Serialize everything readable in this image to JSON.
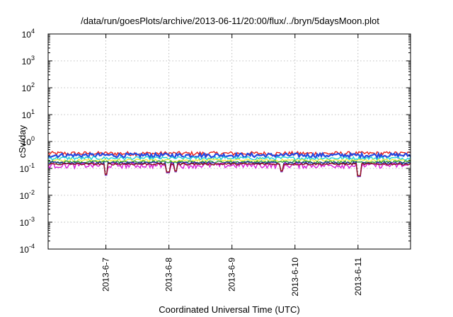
{
  "chart_data": {
    "type": "line",
    "title": "/data/run/goesPlots/archive/2013-06-11/20:00/flux/../bryn/5daysMoon.plot",
    "xlabel": "Coordinated Universal Time (UTC)",
    "ylabel": "cSv/day",
    "yscale": "log",
    "ylim": [
      0.0001,
      10000
    ],
    "xlim": [
      "2013-06-06 02:00",
      "2013-06-11 20:00"
    ],
    "y_ticks": [
      {
        "value": 0.0001,
        "base": "10",
        "exp": "-4"
      },
      {
        "value": 0.001,
        "base": "10",
        "exp": "-3"
      },
      {
        "value": 0.01,
        "base": "10",
        "exp": "-2"
      },
      {
        "value": 0.1,
        "base": "10",
        "exp": "-1"
      },
      {
        "value": 1,
        "base": "10",
        "exp": "0"
      },
      {
        "value": 10,
        "base": "10",
        "exp": "1"
      },
      {
        "value": 100,
        "base": "10",
        "exp": "2"
      },
      {
        "value": 1000,
        "base": "10",
        "exp": "3"
      },
      {
        "value": 10000,
        "base": "10",
        "exp": "4"
      }
    ],
    "x_ticks": [
      {
        "label": "2013-6-7",
        "t": "2013-06-07 00:00"
      },
      {
        "label": "2013-6-8",
        "t": "2013-06-08 00:00"
      },
      {
        "label": "2013-6-9",
        "t": "2013-06-09 00:00"
      },
      {
        "label": "2013-6-10",
        "t": "2013-06-10 00:00"
      },
      {
        "label": "2013-6-11",
        "t": "2013-06-11 00:00"
      }
    ],
    "grid": true,
    "series": [
      {
        "color": "#e8201b",
        "level": 0.36,
        "jitter": 0.18
      },
      {
        "color": "#2448e0",
        "level": 0.31,
        "jitter": 0.18
      },
      {
        "color": "#1fd0d8",
        "level": 0.24,
        "jitter": 0.14
      },
      {
        "color": "#f2f040",
        "level": 0.2,
        "jitter": 0.12
      },
      {
        "color": "#2c9a3c",
        "level": 0.175,
        "jitter": 0.1
      },
      {
        "color": "#1d2ca0",
        "level": 0.16,
        "jitter": 0.1
      },
      {
        "color": "#d81ad8",
        "level": 0.13,
        "jitter": 0.22
      },
      {
        "color": "#8a1515",
        "level": 0.145,
        "jitter": 0.08
      }
    ],
    "dips": [
      {
        "t": "2013-06-07 00:10",
        "value": 0.045
      },
      {
        "t": "2013-06-07 23:40",
        "value": 0.055
      },
      {
        "t": "2013-06-08 02:30",
        "value": 0.06
      },
      {
        "t": "2013-06-09 19:00",
        "value": 0.06
      },
      {
        "t": "2013-06-11 00:20",
        "value": 0.04
      }
    ]
  }
}
